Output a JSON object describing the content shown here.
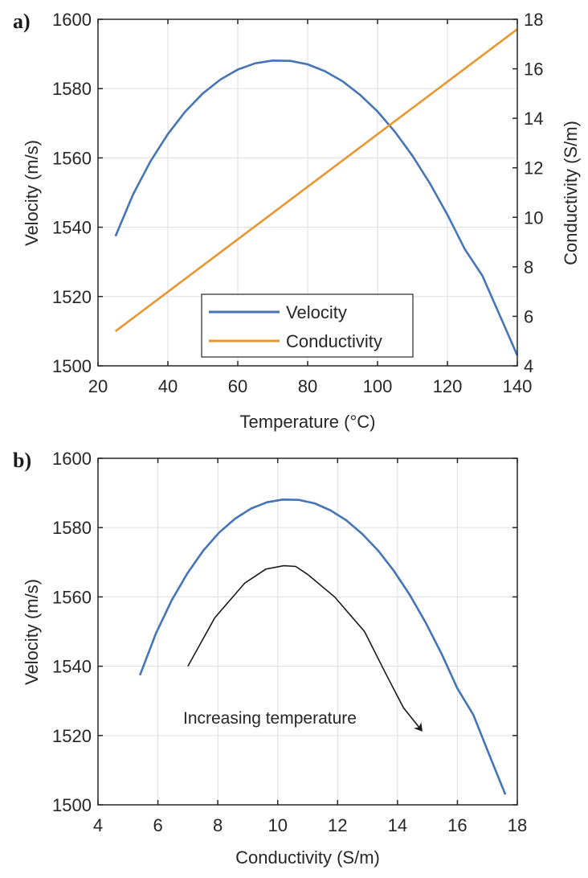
{
  "chart_data": [
    {
      "panel_label": "a)",
      "type": "line",
      "title": "",
      "xlabel": "Temperature (°C)",
      "ylabel": "Velocity (m/s)",
      "ylabel_right": "Conductivity (S/m)",
      "xlim": [
        20,
        140
      ],
      "ylim": [
        1500,
        1600
      ],
      "ylim_right": [
        4,
        18
      ],
      "xticks": [
        20,
        40,
        60,
        80,
        100,
        120,
        140
      ],
      "yticks": [
        1500,
        1520,
        1540,
        1560,
        1580,
        1600
      ],
      "yticks_right": [
        4,
        6,
        8,
        10,
        12,
        14,
        16,
        18
      ],
      "grid": true,
      "legend": {
        "placement": "bottom-center",
        "entries": [
          "Velocity",
          "Conductivity"
        ]
      },
      "series": [
        {
          "name": "Velocity",
          "axis": "left",
          "color": "#4575b4",
          "x": [
            25,
            30,
            35,
            40,
            45,
            50,
            55,
            60,
            65,
            70,
            75,
            80,
            85,
            90,
            95,
            100,
            105,
            110,
            115,
            120,
            125,
            130,
            135,
            140
          ],
          "y": [
            1537.4,
            1549.4,
            1559.0,
            1566.9,
            1573.4,
            1578.6,
            1582.6,
            1585.5,
            1587.3,
            1588.1,
            1588.0,
            1587.0,
            1585.0,
            1582.1,
            1578.2,
            1573.4,
            1567.5,
            1560.6,
            1552.6,
            1543.6,
            1533.6,
            1526.0,
            1514.5,
            1503.0
          ]
        },
        {
          "name": "Conductivity",
          "axis": "right",
          "color": "#e8962e",
          "x": [
            25,
            140
          ],
          "y": [
            5.4,
            17.6
          ]
        }
      ]
    },
    {
      "panel_label": "b)",
      "type": "line",
      "title": "",
      "xlabel": "Conductivity (S/m)",
      "ylabel": "Velocity (m/s)",
      "xlim": [
        4,
        18
      ],
      "ylim": [
        1500,
        1600
      ],
      "xticks": [
        4,
        6,
        8,
        10,
        12,
        14,
        16,
        18
      ],
      "yticks": [
        1500,
        1520,
        1540,
        1560,
        1580,
        1600
      ],
      "grid": true,
      "series": [
        {
          "name": "Velocity",
          "color": "#4575b4",
          "x": [
            5.4,
            5.93,
            6.46,
            6.99,
            7.52,
            8.05,
            8.58,
            9.11,
            9.64,
            10.17,
            10.7,
            11.23,
            11.76,
            12.29,
            12.82,
            13.35,
            13.88,
            14.41,
            14.94,
            15.47,
            16.0,
            16.53,
            17.06,
            17.6
          ],
          "y": [
            1537.4,
            1549.4,
            1559.0,
            1566.9,
            1573.4,
            1578.6,
            1582.6,
            1585.5,
            1587.3,
            1588.1,
            1588.0,
            1587.0,
            1585.0,
            1582.1,
            1578.2,
            1573.4,
            1567.5,
            1560.6,
            1552.6,
            1543.6,
            1533.6,
            1526.0,
            1514.5,
            1503.0
          ]
        }
      ],
      "annotation": {
        "text": "Increasing temperature",
        "arrow_color": "#1a1a1a",
        "arrow_path": {
          "x": [
            7.0,
            7.9,
            8.9,
            9.6,
            10.2,
            10.6,
            11.0,
            11.9,
            12.9,
            13.6,
            14.2,
            14.8
          ],
          "y": [
            1540,
            1554,
            1564,
            1568,
            1569,
            1568.8,
            1566.5,
            1560,
            1550,
            1538,
            1528,
            1521.5
          ]
        }
      }
    }
  ]
}
